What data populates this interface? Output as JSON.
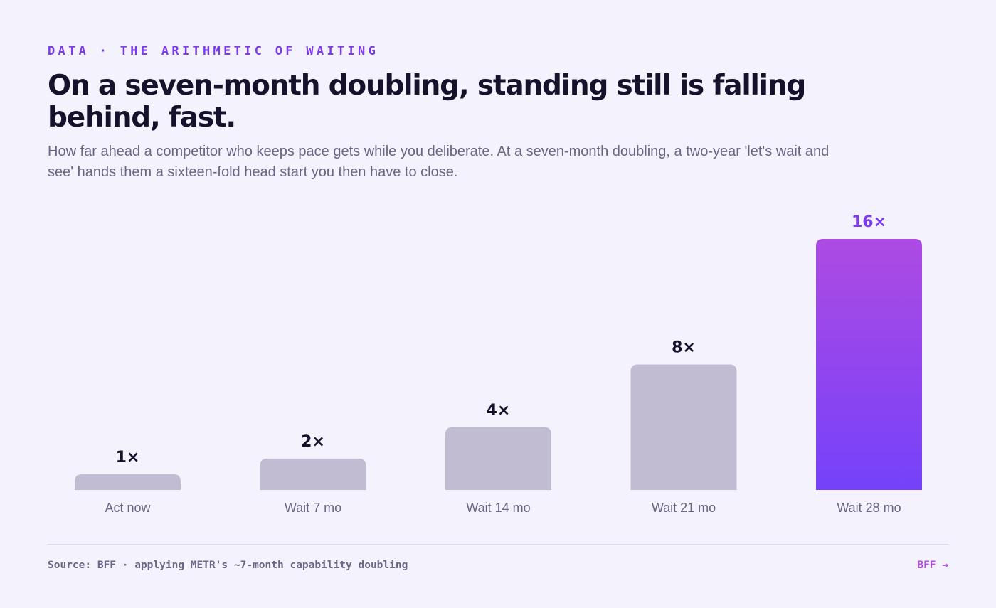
{
  "header": {
    "eyebrow": "DATA · THE ARITHMETIC OF WAITING",
    "title": "On a seven-month doubling, standing still is falling behind, fast.",
    "subtitle": "How far ahead a competitor who keeps pace gets while you deliberate. At a seven-month doubling, a two-year 'let's wait and see' hands them a sixteen-fold head start you then have to close."
  },
  "chart_data": {
    "type": "bar",
    "categories": [
      "Act now",
      "Wait 7 mo",
      "Wait 14 mo",
      "Wait 21 mo",
      "Wait 28 mo"
    ],
    "values": [
      1,
      2,
      4,
      8,
      16
    ],
    "data_labels": [
      "1×",
      "2×",
      "4×",
      "8×",
      "16×"
    ],
    "title": "",
    "xlabel": "",
    "ylabel": "",
    "ylim": [
      0,
      16
    ],
    "grid": false,
    "legend": "none",
    "highlight_index": 4
  },
  "colors": {
    "bar_default": "#c2bcd3",
    "highlight_top": "#ad4be2",
    "highlight_bottom": "#7541fb",
    "label_default": "#16122b",
    "label_highlight": "#7c3aed",
    "category_label": "#6a6584"
  },
  "footer": {
    "source": "Source: BFF · applying METR's ~7-month capability doubling",
    "brand": "BFF →"
  }
}
